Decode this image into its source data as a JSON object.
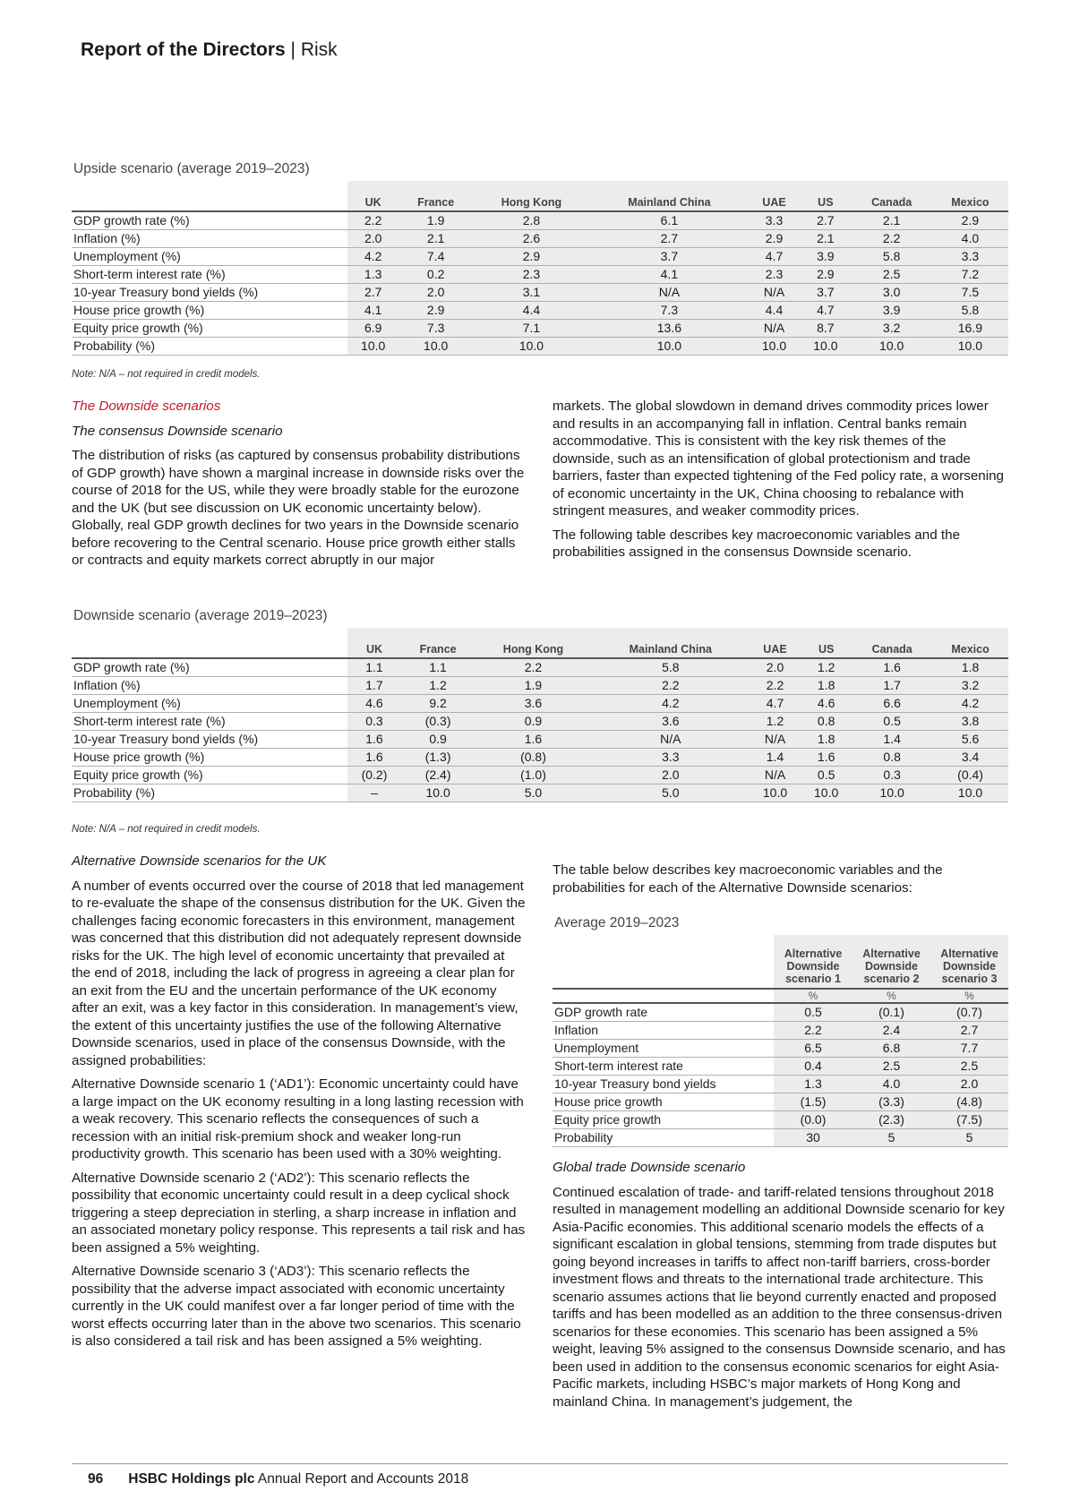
{
  "header": {
    "bold": "Report of the Directors",
    "sep": " | ",
    "section": "Risk"
  },
  "countries": [
    "UK",
    "France",
    "Hong Kong",
    "Mainland China",
    "UAE",
    "US",
    "Canada",
    "Mexico"
  ],
  "row_labels": [
    "GDP growth rate (%)",
    "Inflation (%)",
    "Unemployment (%)",
    "Short-term interest rate (%)",
    "10-year Treasury bond yields (%)",
    "House price growth (%)",
    "Equity price growth (%)",
    "Probability (%)"
  ],
  "upside": {
    "title": "Upside scenario (average 2019–2023)",
    "rows": [
      [
        "2.2",
        "1.9",
        "2.8",
        "6.1",
        "3.3",
        "2.7",
        "2.1",
        "2.9"
      ],
      [
        "2.0",
        "2.1",
        "2.6",
        "2.7",
        "2.9",
        "2.1",
        "2.2",
        "4.0"
      ],
      [
        "4.2",
        "7.4",
        "2.9",
        "3.7",
        "4.7",
        "3.9",
        "5.8",
        "3.3"
      ],
      [
        "1.3",
        "0.2",
        "2.3",
        "4.1",
        "2.3",
        "2.9",
        "2.5",
        "7.2"
      ],
      [
        "2.7",
        "2.0",
        "3.1",
        "N/A",
        "N/A",
        "3.7",
        "3.0",
        "7.5"
      ],
      [
        "4.1",
        "2.9",
        "4.4",
        "7.3",
        "4.4",
        "4.7",
        "3.9",
        "5.8"
      ],
      [
        "6.9",
        "7.3",
        "7.1",
        "13.6",
        "N/A",
        "8.7",
        "3.2",
        "16.9"
      ],
      [
        "10.0",
        "10.0",
        "10.0",
        "10.0",
        "10.0",
        "10.0",
        "10.0",
        "10.0"
      ]
    ]
  },
  "note": "Note: N/A – not required in credit models.",
  "text_top": {
    "heading_red": "The Downside scenarios",
    "heading_ital": "The consensus Downside scenario",
    "left_para": "The distribution of risks (as captured by consensus probability distributions of GDP growth) have shown a marginal increase in downside risks over the course of 2018 for the US, while they were broadly stable for the eurozone and the UK (but see discussion on UK economic uncertainty below). Globally, real GDP growth declines for two years in the Downside scenario before recovering to the Central scenario. House price growth either stalls or contracts and equity markets correct abruptly in our major",
    "right_para1": "markets. The global slowdown in demand drives commodity prices lower and results in an accompanying fall in inflation. Central banks remain accommodative. This is consistent with the key risk themes of the downside, such as an intensification of global protectionism and trade barriers, faster than expected tightening of the Fed policy rate, a worsening of economic uncertainty in the UK, China choosing to rebalance with stringent measures, and weaker commodity prices.",
    "right_para2": "The following table describes key macroeconomic variables and the probabilities assigned in the consensus Downside scenario."
  },
  "downside": {
    "title": "Downside scenario (average 2019–2023)",
    "rows": [
      [
        "1.1",
        "1.1",
        "2.2",
        "5.8",
        "2.0",
        "1.2",
        "1.6",
        "1.8"
      ],
      [
        "1.7",
        "1.2",
        "1.9",
        "2.2",
        "2.2",
        "1.8",
        "1.7",
        "3.2"
      ],
      [
        "4.6",
        "9.2",
        "3.6",
        "4.2",
        "4.7",
        "4.6",
        "6.6",
        "4.2"
      ],
      [
        "0.3",
        "(0.3)",
        "0.9",
        "3.6",
        "1.2",
        "0.8",
        "0.5",
        "3.8"
      ],
      [
        "1.6",
        "0.9",
        "1.6",
        "N/A",
        "N/A",
        "1.8",
        "1.4",
        "5.6"
      ],
      [
        "1.6",
        "(1.3)",
        "(0.8)",
        "3.3",
        "1.4",
        "1.6",
        "0.8",
        "3.4"
      ],
      [
        "(0.2)",
        "(2.4)",
        "(1.0)",
        "2.0",
        "N/A",
        "0.5",
        "0.3",
        "(0.4)"
      ],
      [
        "–",
        "10.0",
        "5.0",
        "5.0",
        "10.0",
        "10.0",
        "10.0",
        "10.0"
      ]
    ]
  },
  "text_bottom_left": {
    "heading_ital": "Alternative Downside scenarios for the UK",
    "p1": "A number of events occurred over the course of 2018 that led management to re-evaluate the shape of the consensus distribution for the UK. Given the challenges facing economic forecasters in this environment, management was concerned that this distribution did not adequately represent downside risks for the UK. The high level of economic uncertainty that prevailed at the end of 2018, including the lack of progress in agreeing a clear plan for an exit from the EU and the uncertain performance of the UK economy after an exit, was a key factor in this consideration. In management’s view, the extent of this uncertainty justifies the use of the following Alternative Downside scenarios, used in place of the consensus Downside, with the assigned probabilities:",
    "p2": "Alternative Downside scenario 1 (‘AD1’): Economic uncertainty could have a large impact on the UK economy resulting in a long lasting recession with a weak recovery. This scenario reflects the consequences of such a recession with an initial risk-premium shock and weaker long-run productivity growth. This scenario has been used with a 30% weighting.",
    "p3": "Alternative Downside scenario 2 (‘AD2’): This scenario reflects the possibility that economic uncertainty could result in a deep cyclical shock triggering a steep depreciation in sterling, a sharp increase in inflation and an associated monetary policy response. This represents a tail risk and has been assigned a 5% weighting.",
    "p4": "Alternative Downside scenario 3 (‘AD3’): This scenario reflects the possibility that the adverse impact associated with economic uncertainty currently in the UK could manifest over a far longer period of time with the worst effects occurring later than in the above two scenarios. This scenario is also considered a tail risk and has been assigned a 5% weighting."
  },
  "text_bottom_right": {
    "intro": "The table below describes key macroeconomic variables and the probabilities for each of the Alternative Downside scenarios:",
    "heading_ital": "Global trade Downside scenario",
    "p1": "Continued escalation of trade- and tariff-related tensions throughout 2018 resulted in management modelling an additional Downside scenario for key Asia-Pacific economies. This additional scenario models the effects of a significant escalation in global tensions, stemming from trade disputes but going beyond increases in tariffs to affect non-tariff barriers, cross-border investment flows and threats to the international trade architecture. This scenario assumes actions that lie beyond currently enacted and proposed tariffs and has been modelled as an addition to the three consensus-driven scenarios for these economies. This scenario has been assigned a 5% weight, leaving 5% assigned to the consensus Downside scenario, and has been used in addition to the consensus economic scenarios for eight Asia-Pacific markets, including HSBC’s major markets of Hong Kong and mainland China. In management’s judgement, the"
  },
  "alt": {
    "title": "Average 2019–2023",
    "headers": [
      "Alternative Downside scenario 1",
      "Alternative Downside scenario 2",
      "Alternative Downside scenario 3"
    ],
    "units": [
      "%",
      "%",
      "%"
    ],
    "row_labels": [
      "GDP growth rate",
      "Inflation",
      "Unemployment",
      "Short-term interest rate",
      "10-year Treasury bond yields",
      "House price growth",
      "Equity price growth",
      "Probability"
    ],
    "rows": [
      [
        "0.5",
        "(0.1)",
        "(0.7)"
      ],
      [
        "2.2",
        "2.4",
        "2.7"
      ],
      [
        "6.5",
        "6.8",
        "7.7"
      ],
      [
        "0.4",
        "2.5",
        "2.5"
      ],
      [
        "1.3",
        "4.0",
        "2.0"
      ],
      [
        "(1.5)",
        "(3.3)",
        "(4.8)"
      ],
      [
        "(0.0)",
        "(2.3)",
        "(7.5)"
      ],
      [
        "30",
        "5",
        "5"
      ]
    ]
  },
  "footer": {
    "page": "96",
    "company": "HSBC Holdings plc",
    "report": " Annual Report and Accounts 2018"
  }
}
